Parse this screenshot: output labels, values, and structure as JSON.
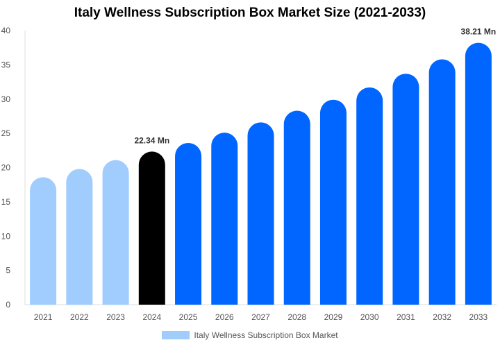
{
  "chart_data": {
    "type": "bar",
    "title": "Italy Wellness Subscription Box Market Size (2021-2033)",
    "categories": [
      "2021",
      "2022",
      "2023",
      "2024",
      "2025",
      "2026",
      "2027",
      "2028",
      "2029",
      "2030",
      "2031",
      "2032",
      "2033"
    ],
    "series": [
      {
        "name": "Italy Wellness Subscription Box Market",
        "values": [
          18.6,
          19.8,
          21.1,
          22.34,
          23.6,
          25.1,
          26.6,
          28.3,
          29.9,
          31.7,
          33.7,
          35.8,
          38.21
        ]
      }
    ],
    "bar_colors": [
      "#a0cdfd",
      "#a0cdfd",
      "#a0cdfd",
      "#000000",
      "#0066ff",
      "#0066ff",
      "#0066ff",
      "#0066ff",
      "#0066ff",
      "#0066ff",
      "#0066ff",
      "#0066ff",
      "#0066ff"
    ],
    "data_labels": {
      "3": "22.34 Mn",
      "12": "38.21 Mn"
    },
    "ylim": [
      0,
      40
    ],
    "yticks": [
      0,
      5,
      10,
      15,
      20,
      25,
      30,
      35,
      40
    ],
    "xlabel": "",
    "ylabel": "",
    "grid": false,
    "legend": "bottom",
    "legend_color": "#a0cdfd"
  }
}
